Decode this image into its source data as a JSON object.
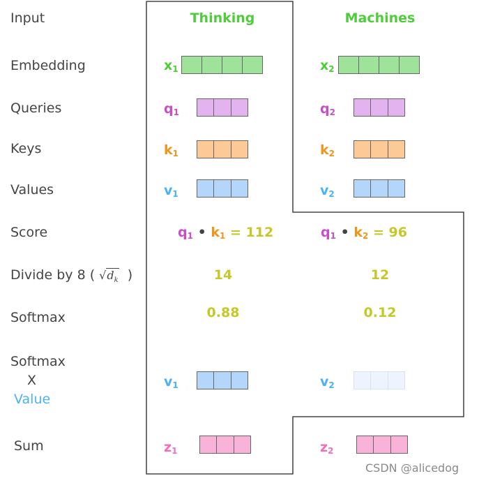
{
  "row_labels": {
    "input": "Input",
    "embedding": "Embedding",
    "queries": "Queries",
    "keys": "Keys",
    "values": "Values",
    "score": "Score",
    "divide_prefix": "Divide by 8 (",
    "divide_suffix": ")",
    "softmax": "Softmax",
    "softmax_x_value_line1": "Softmax",
    "softmax_x_value_line2": "X",
    "softmax_x_value_line3": "Value",
    "sum": "Sum"
  },
  "columns": {
    "word1": "Thinking",
    "word2": "Machines"
  },
  "vector_labels": {
    "x": "x",
    "q": "q",
    "k": "k",
    "v": "v",
    "z": "z",
    "sub1": "1",
    "sub2": "2"
  },
  "score": {
    "dot": "•",
    "equals": "=",
    "score1": "112",
    "score2": "96"
  },
  "divided": {
    "d1": "14",
    "d2": "12"
  },
  "softmax": {
    "s1": "0.88",
    "s2": "0.12"
  },
  "sqrt_dk": "√d_k",
  "watermark": "CSDN @alicedog",
  "colors": {
    "green": "#4fcc3a",
    "purple": "#c84fc8",
    "orange": "#f0951b",
    "blue": "#4ab3f4",
    "pink": "#f06fb6",
    "olive": "#c5c72a",
    "embedding_fill": "#9fe29a",
    "query_fill": "#e2b3ee",
    "key_fill": "#fdc996",
    "value_fill": "#b3d6fa",
    "value2_faded_fill": "#edf4fd",
    "sum_fill": "#f9b2d8"
  }
}
